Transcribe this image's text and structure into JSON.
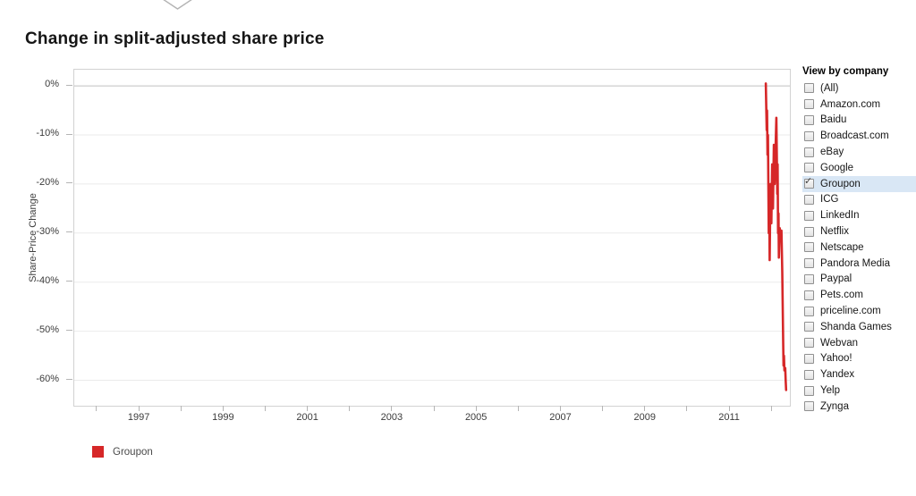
{
  "title": "Change in split-adjusted share price",
  "icons": {
    "chevron": "chevron-down",
    "check_glyph": "✓"
  },
  "chart_data": {
    "type": "line",
    "title": "Change in split-adjusted share price",
    "xlabel": "",
    "ylabel": "Share-Price Change",
    "grid": "horizontal",
    "legend_position": "bottom-left",
    "xlim": [
      1995.45,
      2012.42
    ],
    "ylim": [
      -65.2,
      3.3
    ],
    "x_ticks_labeled": [
      1997,
      1999,
      2001,
      2003,
      2005,
      2007,
      2009,
      2011
    ],
    "x_ticks_minor": [
      1996,
      1997,
      1998,
      1999,
      2000,
      2001,
      2002,
      2003,
      2004,
      2005,
      2006,
      2007,
      2008,
      2009,
      2010,
      2011,
      2012
    ],
    "y_ticks": [
      {
        "value": 0,
        "label": "0%"
      },
      {
        "value": -10,
        "label": "-10%"
      },
      {
        "value": -20,
        "label": "-20%"
      },
      {
        "value": -30,
        "label": "-30%"
      },
      {
        "value": -40,
        "label": "-40%"
      },
      {
        "value": -50,
        "label": "-50%"
      },
      {
        "value": -60,
        "label": "-60%"
      }
    ],
    "series": [
      {
        "name": "Groupon",
        "color": "#d62728",
        "points": [
          [
            2011.85,
            0.5
          ],
          [
            2011.87,
            -9
          ],
          [
            2011.88,
            -5
          ],
          [
            2011.89,
            -14
          ],
          [
            2011.9,
            -10
          ],
          [
            2011.92,
            -30
          ],
          [
            2011.93,
            -22
          ],
          [
            2011.94,
            -35.5
          ],
          [
            2011.96,
            -20
          ],
          [
            2011.98,
            -28
          ],
          [
            2012.0,
            -16
          ],
          [
            2012.02,
            -25
          ],
          [
            2012.04,
            -12
          ],
          [
            2012.06,
            -20
          ],
          [
            2012.1,
            -6.5
          ],
          [
            2012.12,
            -22
          ],
          [
            2012.13,
            -16
          ],
          [
            2012.14,
            -30
          ],
          [
            2012.15,
            -26
          ],
          [
            2012.16,
            -35
          ],
          [
            2012.18,
            -29
          ],
          [
            2012.2,
            -31
          ],
          [
            2012.22,
            -29.5
          ],
          [
            2012.24,
            -38
          ],
          [
            2012.25,
            -45
          ],
          [
            2012.26,
            -52
          ],
          [
            2012.27,
            -57
          ],
          [
            2012.28,
            -55
          ],
          [
            2012.29,
            -58
          ],
          [
            2012.31,
            -57.5
          ],
          [
            2012.32,
            -60
          ],
          [
            2012.33,
            -62
          ]
        ]
      }
    ]
  },
  "legend": {
    "items": [
      {
        "label": "Groupon",
        "color": "#d62728"
      }
    ]
  },
  "panel": {
    "header": "View by company",
    "items": [
      {
        "label": "(All)",
        "checked": false
      },
      {
        "label": "Amazon.com",
        "checked": false
      },
      {
        "label": "Baidu",
        "checked": false
      },
      {
        "label": "Broadcast.com",
        "checked": false
      },
      {
        "label": "eBay",
        "checked": false
      },
      {
        "label": "Google",
        "checked": false
      },
      {
        "label": "Groupon",
        "checked": true
      },
      {
        "label": "ICG",
        "checked": false
      },
      {
        "label": "LinkedIn",
        "checked": false
      },
      {
        "label": "Netflix",
        "checked": false
      },
      {
        "label": "Netscape",
        "checked": false
      },
      {
        "label": "Pandora Media",
        "checked": false
      },
      {
        "label": "Paypal",
        "checked": false
      },
      {
        "label": "Pets.com",
        "checked": false
      },
      {
        "label": "priceline.com",
        "checked": false
      },
      {
        "label": "Shanda Games",
        "checked": false
      },
      {
        "label": "Webvan",
        "checked": false
      },
      {
        "label": "Yahoo!",
        "checked": false
      },
      {
        "label": "Yandex",
        "checked": false
      },
      {
        "label": "Yelp",
        "checked": false
      },
      {
        "label": "Zynga",
        "checked": false
      }
    ]
  }
}
